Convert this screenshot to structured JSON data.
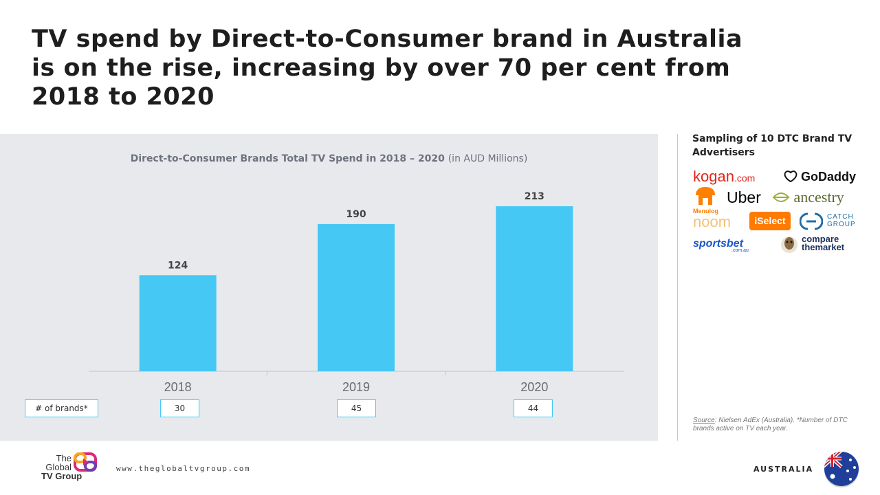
{
  "title": "TV spend by Direct-to-Consumer brand in Australia is on the rise, increasing by over 70 per cent from 2018 to 2020",
  "chart_title_main": "Direct-to-Consumer Brands Total TV Spend in 2018 – 2020",
  "chart_title_unit": "(in AUD Millions)",
  "chart_data": {
    "type": "bar",
    "title": "Direct-to-Consumer Brands Total TV Spend in 2018 – 2020 (in AUD Millions)",
    "categories": [
      "2018",
      "2019",
      "2020"
    ],
    "values": [
      124,
      190,
      213
    ],
    "xlabel": "",
    "ylabel": "",
    "ylim": [
      0,
      250
    ],
    "grid": false,
    "color": "#45c8f4"
  },
  "brands_row": {
    "label": "# of brands*",
    "values": [
      "30",
      "45",
      "44"
    ]
  },
  "sidebar": {
    "heading": "Sampling of 10 DTC Brand TV Advertisers",
    "logos": {
      "kogan": "kogan",
      "kogan_suffix": ".com",
      "godaddy": "GoDaddy",
      "uber": "Uber",
      "ancestry": "ancestry",
      "menulog": "Menulog",
      "noom": "noom",
      "iselect": "iSelect",
      "catch_1": "CATCH",
      "catch_2": "GROUP",
      "sportsbet": "sportsbet",
      "sportsbet_suffix": ".com.au",
      "compare_1": "compare",
      "compare_2": "themarket"
    },
    "source_label": "Source",
    "source_text": ": Nielsen AdEx (Australia). *Number of DTC brands active on TV each year."
  },
  "footer": {
    "brand_line1": "The",
    "brand_line2": "Global",
    "brand_line3": "TV Group",
    "url": "www.theglobaltvgroup.com",
    "country": "AUSTRALIA"
  },
  "colors": {
    "accent": "#45c8f4",
    "panel": "#e8e9ed"
  }
}
